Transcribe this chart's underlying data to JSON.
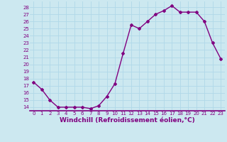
{
  "x": [
    0,
    1,
    2,
    3,
    4,
    5,
    6,
    7,
    8,
    9,
    10,
    11,
    12,
    13,
    14,
    15,
    16,
    17,
    18,
    19,
    20,
    21,
    22,
    23
  ],
  "y": [
    17.5,
    16.5,
    15.0,
    14.0,
    14.0,
    14.0,
    14.0,
    13.8,
    14.2,
    15.5,
    17.3,
    21.5,
    25.5,
    25.0,
    26.0,
    27.0,
    27.5,
    28.2,
    27.3,
    27.3,
    27.3,
    26.0,
    23.0,
    20.8
  ],
  "line_color": "#800080",
  "marker": "D",
  "markersize": 2.0,
  "linewidth": 1.0,
  "xlabel": "Windchill (Refroidissement éolien,°C)",
  "xlabel_fontsize": 6.5,
  "xlabel_color": "#800080",
  "ylabel_ticks": [
    14,
    15,
    16,
    17,
    18,
    19,
    20,
    21,
    22,
    23,
    24,
    25,
    26,
    27,
    28
  ],
  "ylim": [
    13.5,
    28.8
  ],
  "xlim": [
    -0.5,
    23.5
  ],
  "xtick_labels": [
    "0",
    "1",
    "2",
    "3",
    "4",
    "5",
    "6",
    "7",
    "8",
    "9",
    "10",
    "11",
    "12",
    "13",
    "14",
    "15",
    "16",
    "17",
    "18",
    "19",
    "20",
    "21",
    "22",
    "23"
  ],
  "bg_color": "#cce8f0",
  "grid_color": "#b0d8e8",
  "tick_color": "#800080",
  "tick_fontsize": 5.0,
  "xlabel_fontweight": "bold"
}
